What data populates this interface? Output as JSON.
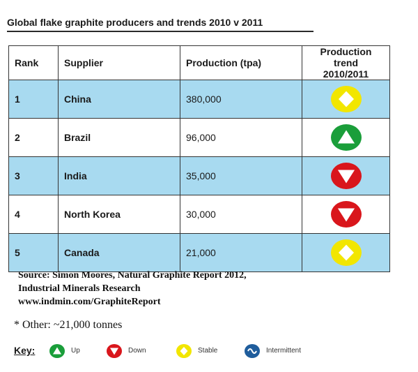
{
  "title": "Global flake graphite producers and trends 2010 v 2011",
  "colors": {
    "up": "#1a9e3a",
    "down": "#d9161c",
    "stable": "#f2e600",
    "intermittent": "#1f5d9c",
    "row_shade": "#a8daf0"
  },
  "chart_data": {
    "type": "table",
    "title": "Global flake graphite producers and trends 2010 v 2011",
    "columns": [
      "Rank",
      "Supplier",
      "Production (tpa)",
      "Production trend 2010/2011"
    ],
    "rows": [
      {
        "rank": "1",
        "supplier": "China",
        "production": "380,000",
        "trend": "stable"
      },
      {
        "rank": "2",
        "supplier": "Brazil",
        "production": "96,000",
        "trend": "up"
      },
      {
        "rank": "3",
        "supplier": "India",
        "production": "35,000",
        "trend": "down"
      },
      {
        "rank": "4",
        "supplier": "North Korea",
        "production": "30,000",
        "trend": "down"
      },
      {
        "rank": "5",
        "supplier": "Canada",
        "production": "21,000",
        "trend": "stable"
      }
    ]
  },
  "header": {
    "rank": "Rank",
    "supplier": "Supplier",
    "production": "Production (tpa)",
    "trend_line1": "Production trend",
    "trend_line2": "2010/2011"
  },
  "source": {
    "line1": "Source: Simon Moores, Natural Graphite Report 2012,",
    "line2": "Industrial Minerals Research",
    "line3": "www.indmin.com/GraphiteReport"
  },
  "other_note": "* Other: ~21,000 tonnes",
  "key": {
    "label": "Key:",
    "items": [
      {
        "icon": "up-icon",
        "label": "Up"
      },
      {
        "icon": "down-icon",
        "label": "Down"
      },
      {
        "icon": "stable-icon",
        "label": "Stable"
      },
      {
        "icon": "intermittent-icon",
        "label": "Intermittent"
      }
    ]
  }
}
